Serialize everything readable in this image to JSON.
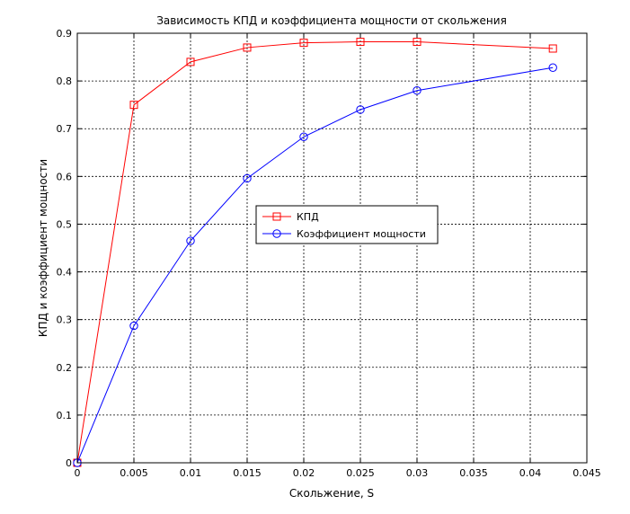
{
  "chart_data": {
    "type": "line",
    "title": "Зависимость КПД и коэффициента мощности от скольжения",
    "xlabel": "Скольжение, S",
    "ylabel": "КПД и коэффициент мощности",
    "xlim": [
      0,
      0.045
    ],
    "ylim": [
      0,
      0.9
    ],
    "xticks": [
      0,
      0.005,
      0.01,
      0.015,
      0.02,
      0.025,
      0.03,
      0.035,
      0.04,
      0.045
    ],
    "xtick_labels": [
      "0",
      "0.005",
      "0.01",
      "0.015",
      "0.02",
      "0.025",
      "0.03",
      "0.035",
      "0.04",
      "0.045"
    ],
    "yticks": [
      0,
      0.1,
      0.2,
      0.3,
      0.4,
      0.5,
      0.6,
      0.7,
      0.8,
      0.9
    ],
    "ytick_labels": [
      "0",
      "0.1",
      "0.2",
      "0.3",
      "0.4",
      "0.5",
      "0.6",
      "0.7",
      "0.8",
      "0.9"
    ],
    "grid": true,
    "legend_position": "center",
    "series": [
      {
        "name": "КПД",
        "color": "#ff0000",
        "marker": "square",
        "x": [
          0,
          0.005,
          0.01,
          0.015,
          0.02,
          0.025,
          0.03,
          0.042
        ],
        "y": [
          0,
          0.75,
          0.84,
          0.87,
          0.88,
          0.882,
          0.882,
          0.868
        ]
      },
      {
        "name": "Коэффициент мощности",
        "color": "#0000ff",
        "marker": "circle",
        "x": [
          0,
          0.005,
          0.01,
          0.015,
          0.02,
          0.025,
          0.03,
          0.042
        ],
        "y": [
          0,
          0.287,
          0.465,
          0.596,
          0.683,
          0.74,
          0.78,
          0.828
        ]
      }
    ]
  }
}
